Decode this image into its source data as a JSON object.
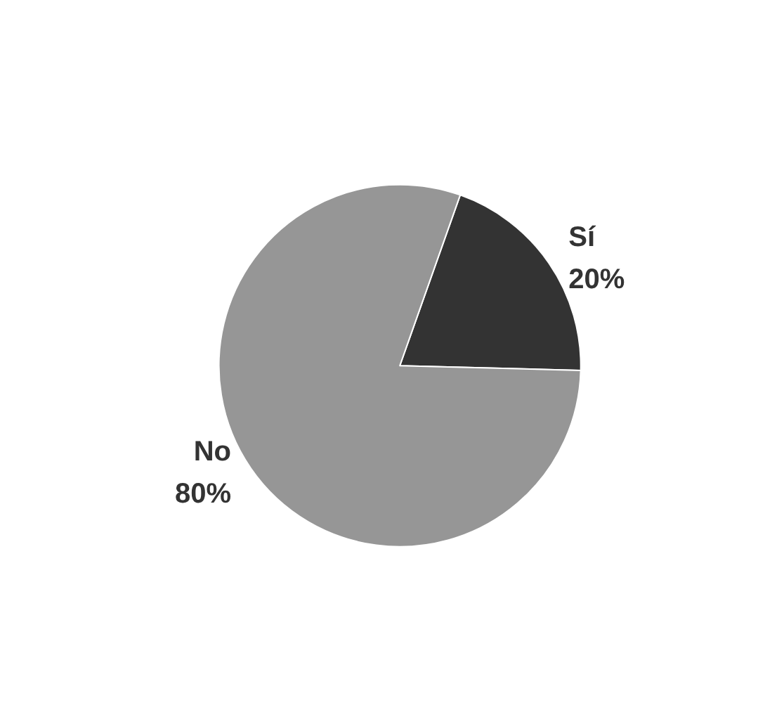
{
  "chart_data": {
    "type": "pie",
    "categories": [
      "Sí",
      "No"
    ],
    "values": [
      20,
      80
    ],
    "colors": [
      "#333333",
      "#969696"
    ],
    "value_labels": [
      "20%",
      "80%"
    ],
    "legend": false
  }
}
